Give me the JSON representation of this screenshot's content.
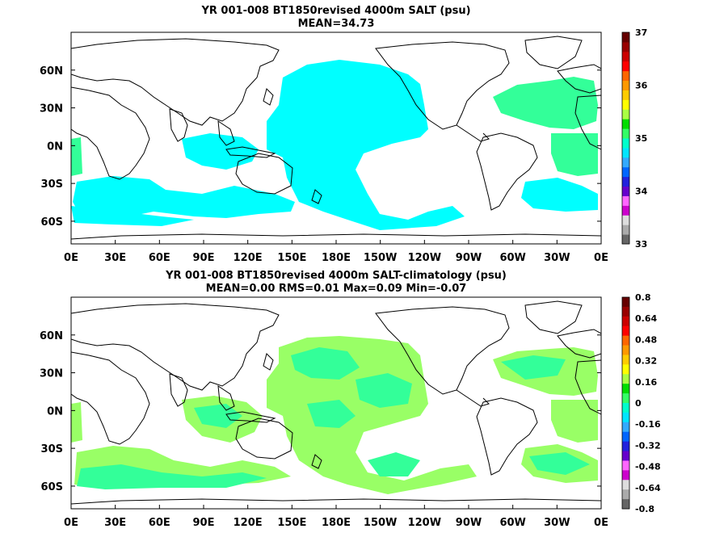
{
  "chart_data": [
    {
      "type": "heatmap",
      "title": "YR 001-008 BT1850revised 4000m SALT (psu)",
      "subtitle": "MEAN=34.73",
      "x_ticks": [
        "0E",
        "30E",
        "60E",
        "90E",
        "120E",
        "150E",
        "180E",
        "150W",
        "120W",
        "90W",
        "60W",
        "30W",
        "0E"
      ],
      "y_ticks": [
        "60N",
        "30N",
        "0N",
        "30S",
        "60S"
      ],
      "colorbar": {
        "labels": [
          "33",
          "34",
          "35",
          "36",
          "37"
        ],
        "colors": [
          "#666666",
          "#aaaaaa",
          "#dddddd",
          "#cc00cc",
          "#ff66ff",
          "#6600cc",
          "#2222dd",
          "#0066ff",
          "#33aaff",
          "#00e5ff",
          "#00ffcc",
          "#33ff66",
          "#00dd00",
          "#aaff44",
          "#ffff00",
          "#ffcc00",
          "#ff9900",
          "#ff6600",
          "#ff0000",
          "#cc0000",
          "#990000",
          "#660000"
        ]
      },
      "field_colors": {
        "land": "#ffffff",
        "low": "#00ffff",
        "high": "#33ff99"
      }
    },
    {
      "type": "heatmap",
      "title": "YR 001-008 BT1850revised 4000m SALT-climatology (psu)",
      "subtitle": "MEAN=0.00   RMS=0.01   Max=0.09   Min=-0.07",
      "x_ticks": [
        "0E",
        "30E",
        "60E",
        "90E",
        "120E",
        "150E",
        "180E",
        "150W",
        "120W",
        "90W",
        "60W",
        "30W",
        "0E"
      ],
      "y_ticks": [
        "60N",
        "30N",
        "0N",
        "30S",
        "60S"
      ],
      "colorbar": {
        "labels": [
          "0.8",
          "0.64",
          "0.48",
          "0.32",
          "0.16",
          "0",
          "-0.16",
          "-0.32",
          "-0.48",
          "-0.64",
          "-0.8"
        ],
        "colors": [
          "#660000",
          "#990000",
          "#cc0000",
          "#ff0000",
          "#ff6600",
          "#ff9900",
          "#ffcc00",
          "#ffff00",
          "#aaff44",
          "#00dd00",
          "#33ff66",
          "#00ffcc",
          "#00e5ff",
          "#33aaff",
          "#0066ff",
          "#2222dd",
          "#6600cc",
          "#ff66ff",
          "#cc00cc",
          "#dddddd",
          "#aaaaaa",
          "#666666"
        ]
      },
      "field_colors": {
        "low": "#33ff99",
        "high": "#99ff66"
      }
    }
  ]
}
